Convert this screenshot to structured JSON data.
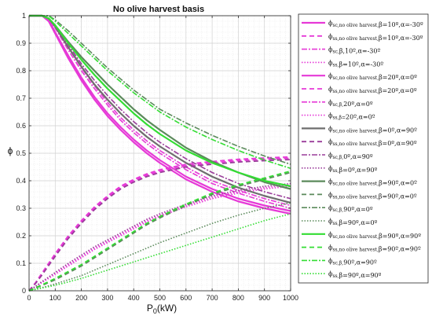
{
  "chart_data": {
    "type": "line",
    "title": "No olive harvest basis",
    "xlabel_main": "P",
    "xlabel_sub": "0",
    "xlabel_unit": "(kW)",
    "ylabel": "ϕ",
    "xlim": [
      0,
      1000
    ],
    "ylim": [
      0,
      1
    ],
    "xticks": [
      0,
      100,
      200,
      300,
      400,
      500,
      600,
      700,
      800,
      900,
      1000
    ],
    "yticks": [
      0,
      0.1,
      0.2,
      0.3,
      0.4,
      0.5,
      0.6,
      0.7,
      0.8,
      0.9,
      1
    ],
    "grid": true,
    "minor_grid": true,
    "legend_position": "outside-right",
    "x": [
      0,
      25,
      50,
      75,
      100,
      150,
      200,
      250,
      300,
      350,
      400,
      450,
      500,
      600,
      700,
      800,
      900,
      1000
    ],
    "series": [
      {
        "main": "ϕ",
        "sub": "sc,no olive harvest,",
        "params": "β=10º,α=-30º",
        "color": "#e639d7",
        "dash": "solid",
        "width": 2.2,
        "values": [
          1,
          1,
          1,
          0.98,
          0.935,
          0.845,
          0.765,
          0.695,
          0.635,
          0.585,
          0.54,
          0.5,
          0.465,
          0.405,
          0.36,
          0.325,
          0.3,
          0.28
        ]
      },
      {
        "main": "ϕ",
        "sub": "ss,no olive harvest,",
        "params": "β=10º,α=-30º",
        "color": "#e639d7",
        "dash": "6,4",
        "width": 1.8,
        "values": [
          0,
          0.03,
          0.065,
          0.1,
          0.135,
          0.2,
          0.255,
          0.305,
          0.345,
          0.38,
          0.405,
          0.425,
          0.44,
          0.46,
          0.47,
          0.478,
          0.483,
          0.487
        ]
      },
      {
        "main": "ϕ",
        "sub": "sc,",
        "params": "β,10º,α=-30º",
        "color": "#e639d7",
        "dash": "7,2,2,2",
        "width": 1.6,
        "values": [
          1,
          1,
          1,
          0.99,
          0.955,
          0.875,
          0.8,
          0.735,
          0.675,
          0.62,
          0.575,
          0.535,
          0.5,
          0.44,
          0.39,
          0.355,
          0.325,
          0.3
        ]
      },
      {
        "main": "ϕ",
        "sub": "ss,",
        "params": "β=10º,α=-30º",
        "color": "#e639d7",
        "dash": "1.5,2",
        "width": 1.6,
        "values": [
          0,
          0.015,
          0.03,
          0.045,
          0.06,
          0.09,
          0.12,
          0.15,
          0.175,
          0.2,
          0.225,
          0.25,
          0.27,
          0.305,
          0.335,
          0.355,
          0.37,
          0.38
        ]
      },
      {
        "main": "ϕ",
        "sub": "sc,no olive harvest,",
        "params": "β=20º,α=0º",
        "color": "#e639d7",
        "dash": "solid",
        "width": 2.2,
        "values": [
          1,
          1,
          1,
          0.985,
          0.94,
          0.855,
          0.775,
          0.705,
          0.645,
          0.595,
          0.55,
          0.51,
          0.475,
          0.415,
          0.37,
          0.335,
          0.31,
          0.29
        ]
      },
      {
        "main": "ϕ",
        "sub": "ss,no olive harvest,",
        "params": "β=20º,α=0º",
        "color": "#e639d7",
        "dash": "6,4",
        "width": 1.8,
        "values": [
          0,
          0.028,
          0.06,
          0.095,
          0.13,
          0.195,
          0.25,
          0.3,
          0.34,
          0.375,
          0.4,
          0.42,
          0.435,
          0.455,
          0.465,
          0.473,
          0.478,
          0.482
        ]
      },
      {
        "main": "ϕ",
        "sub": "sc,β,",
        "params": "20º,α=0º",
        "color": "#e639d7",
        "dash": "7,2,2,2",
        "width": 1.6,
        "values": [
          1,
          1,
          1,
          0.99,
          0.96,
          0.885,
          0.81,
          0.745,
          0.685,
          0.63,
          0.585,
          0.545,
          0.51,
          0.45,
          0.4,
          0.365,
          0.335,
          0.31
        ]
      },
      {
        "main": "ϕ",
        "sub": "ss,β=",
        "params": "20º,α=0º",
        "color": "#e639d7",
        "dash": "1.5,2",
        "width": 1.6,
        "values": [
          0,
          0.016,
          0.032,
          0.048,
          0.064,
          0.095,
          0.125,
          0.155,
          0.18,
          0.205,
          0.23,
          0.255,
          0.275,
          0.31,
          0.34,
          0.36,
          0.375,
          0.385
        ]
      },
      {
        "main": "ϕ",
        "sub": "sc,no olive harvest,",
        "params": "β=0º,α=90º",
        "color": "#6e6e6e",
        "dash": "solid",
        "width": 2.2,
        "values": [
          1,
          1,
          1,
          0.99,
          0.96,
          0.885,
          0.815,
          0.75,
          0.695,
          0.645,
          0.6,
          0.56,
          0.525,
          0.465,
          0.415,
          0.375,
          0.345,
          0.32
        ]
      },
      {
        "main": "ϕ",
        "sub": "ss,no olive harvest,",
        "params": "β=0º,α=90º",
        "color": "#9a3d9a",
        "dash": "6,4",
        "width": 1.8,
        "values": [
          0,
          0.027,
          0.058,
          0.092,
          0.125,
          0.19,
          0.245,
          0.295,
          0.335,
          0.37,
          0.395,
          0.415,
          0.43,
          0.45,
          0.46,
          0.468,
          0.473,
          0.477
        ]
      },
      {
        "main": "ϕ",
        "sub": "sc,β,",
        "params": "0º,α=90º",
        "color": "#9a3d9a",
        "dash": "7,2,2,2",
        "width": 1.6,
        "values": [
          1,
          1,
          1,
          0.99,
          0.965,
          0.895,
          0.825,
          0.765,
          0.71,
          0.66,
          0.615,
          0.575,
          0.54,
          0.48,
          0.43,
          0.39,
          0.36,
          0.335
        ]
      },
      {
        "main": "ϕ",
        "sub": "ss,",
        "params": "β=0º,α=90º",
        "color": "#9a3d9a",
        "dash": "1.5,2",
        "width": 1.6,
        "values": [
          0,
          0.017,
          0.034,
          0.05,
          0.067,
          0.1,
          0.13,
          0.16,
          0.185,
          0.21,
          0.235,
          0.26,
          0.28,
          0.315,
          0.345,
          0.365,
          0.38,
          0.39
        ]
      },
      {
        "main": "ϕ",
        "sub": "sc,no olive harvest,",
        "params": "β=90º,α=0º",
        "color": "#5b8a5b",
        "dash": "solid",
        "width": 2.2,
        "values": [
          1,
          1,
          1,
          0.99,
          0.965,
          0.905,
          0.85,
          0.8,
          0.75,
          0.705,
          0.66,
          0.62,
          0.585,
          0.52,
          0.47,
          0.43,
          0.395,
          0.37
        ]
      },
      {
        "main": "ϕ",
        "sub": "ss,no olive harvest,",
        "params": "β=90º,α=0º",
        "color": "#5b8a5b",
        "dash": "6,4",
        "width": 1.8,
        "values": [
          0,
          0.01,
          0.02,
          0.03,
          0.04,
          0.065,
          0.09,
          0.12,
          0.15,
          0.18,
          0.21,
          0.24,
          0.265,
          0.31,
          0.35,
          0.38,
          0.405,
          0.43
        ]
      },
      {
        "main": "ϕ",
        "sub": "sc,β,",
        "params": "90º,α=0º",
        "color": "#5b8a5b",
        "dash": "7,2,2,2",
        "width": 1.6,
        "values": [
          1,
          1,
          1,
          1,
          0.985,
          0.945,
          0.9,
          0.855,
          0.81,
          0.77,
          0.73,
          0.695,
          0.66,
          0.61,
          0.565,
          0.525,
          0.49,
          0.46
        ]
      },
      {
        "main": "ϕ",
        "sub": "ss,",
        "params": "β=90º,α=0º",
        "color": "#5b8a5b",
        "dash": "1.5,2",
        "width": 1.6,
        "values": [
          0,
          0.006,
          0.012,
          0.018,
          0.025,
          0.04,
          0.055,
          0.075,
          0.095,
          0.115,
          0.135,
          0.155,
          0.175,
          0.21,
          0.245,
          0.275,
          0.3,
          0.32
        ]
      },
      {
        "main": "ϕ",
        "sub": "sc,no olive harvest,",
        "params": "β=90º,α=90º",
        "color": "#33dd33",
        "dash": "solid",
        "width": 2.2,
        "values": [
          1,
          1,
          1,
          0.99,
          0.965,
          0.9,
          0.84,
          0.785,
          0.735,
          0.69,
          0.645,
          0.605,
          0.57,
          0.51,
          0.465,
          0.43,
          0.4,
          0.38
        ]
      },
      {
        "main": "ϕ",
        "sub": "ss,no olive harvest,",
        "params": "β=90º,α=90º",
        "color": "#33dd33",
        "dash": "6,4",
        "width": 1.8,
        "values": [
          0,
          0.011,
          0.022,
          0.033,
          0.045,
          0.07,
          0.095,
          0.125,
          0.155,
          0.185,
          0.215,
          0.245,
          0.27,
          0.315,
          0.355,
          0.385,
          0.41,
          0.435
        ]
      },
      {
        "main": "ϕ",
        "sub": "sc,β,",
        "params": "90º,α=90º",
        "color": "#33dd33",
        "dash": "7,2,2,2",
        "width": 1.6,
        "values": [
          1,
          1,
          1,
          1,
          0.98,
          0.935,
          0.89,
          0.845,
          0.8,
          0.76,
          0.72,
          0.685,
          0.65,
          0.595,
          0.55,
          0.51,
          0.475,
          0.445
        ]
      },
      {
        "main": "ϕ",
        "sub": "ss,",
        "params": "β=90º,α=90º",
        "color": "#33dd33",
        "dash": "1.5,2",
        "width": 1.6,
        "values": [
          0,
          0.005,
          0.01,
          0.015,
          0.02,
          0.032,
          0.045,
          0.06,
          0.075,
          0.09,
          0.105,
          0.12,
          0.135,
          0.165,
          0.195,
          0.225,
          0.255,
          0.28
        ]
      }
    ]
  }
}
